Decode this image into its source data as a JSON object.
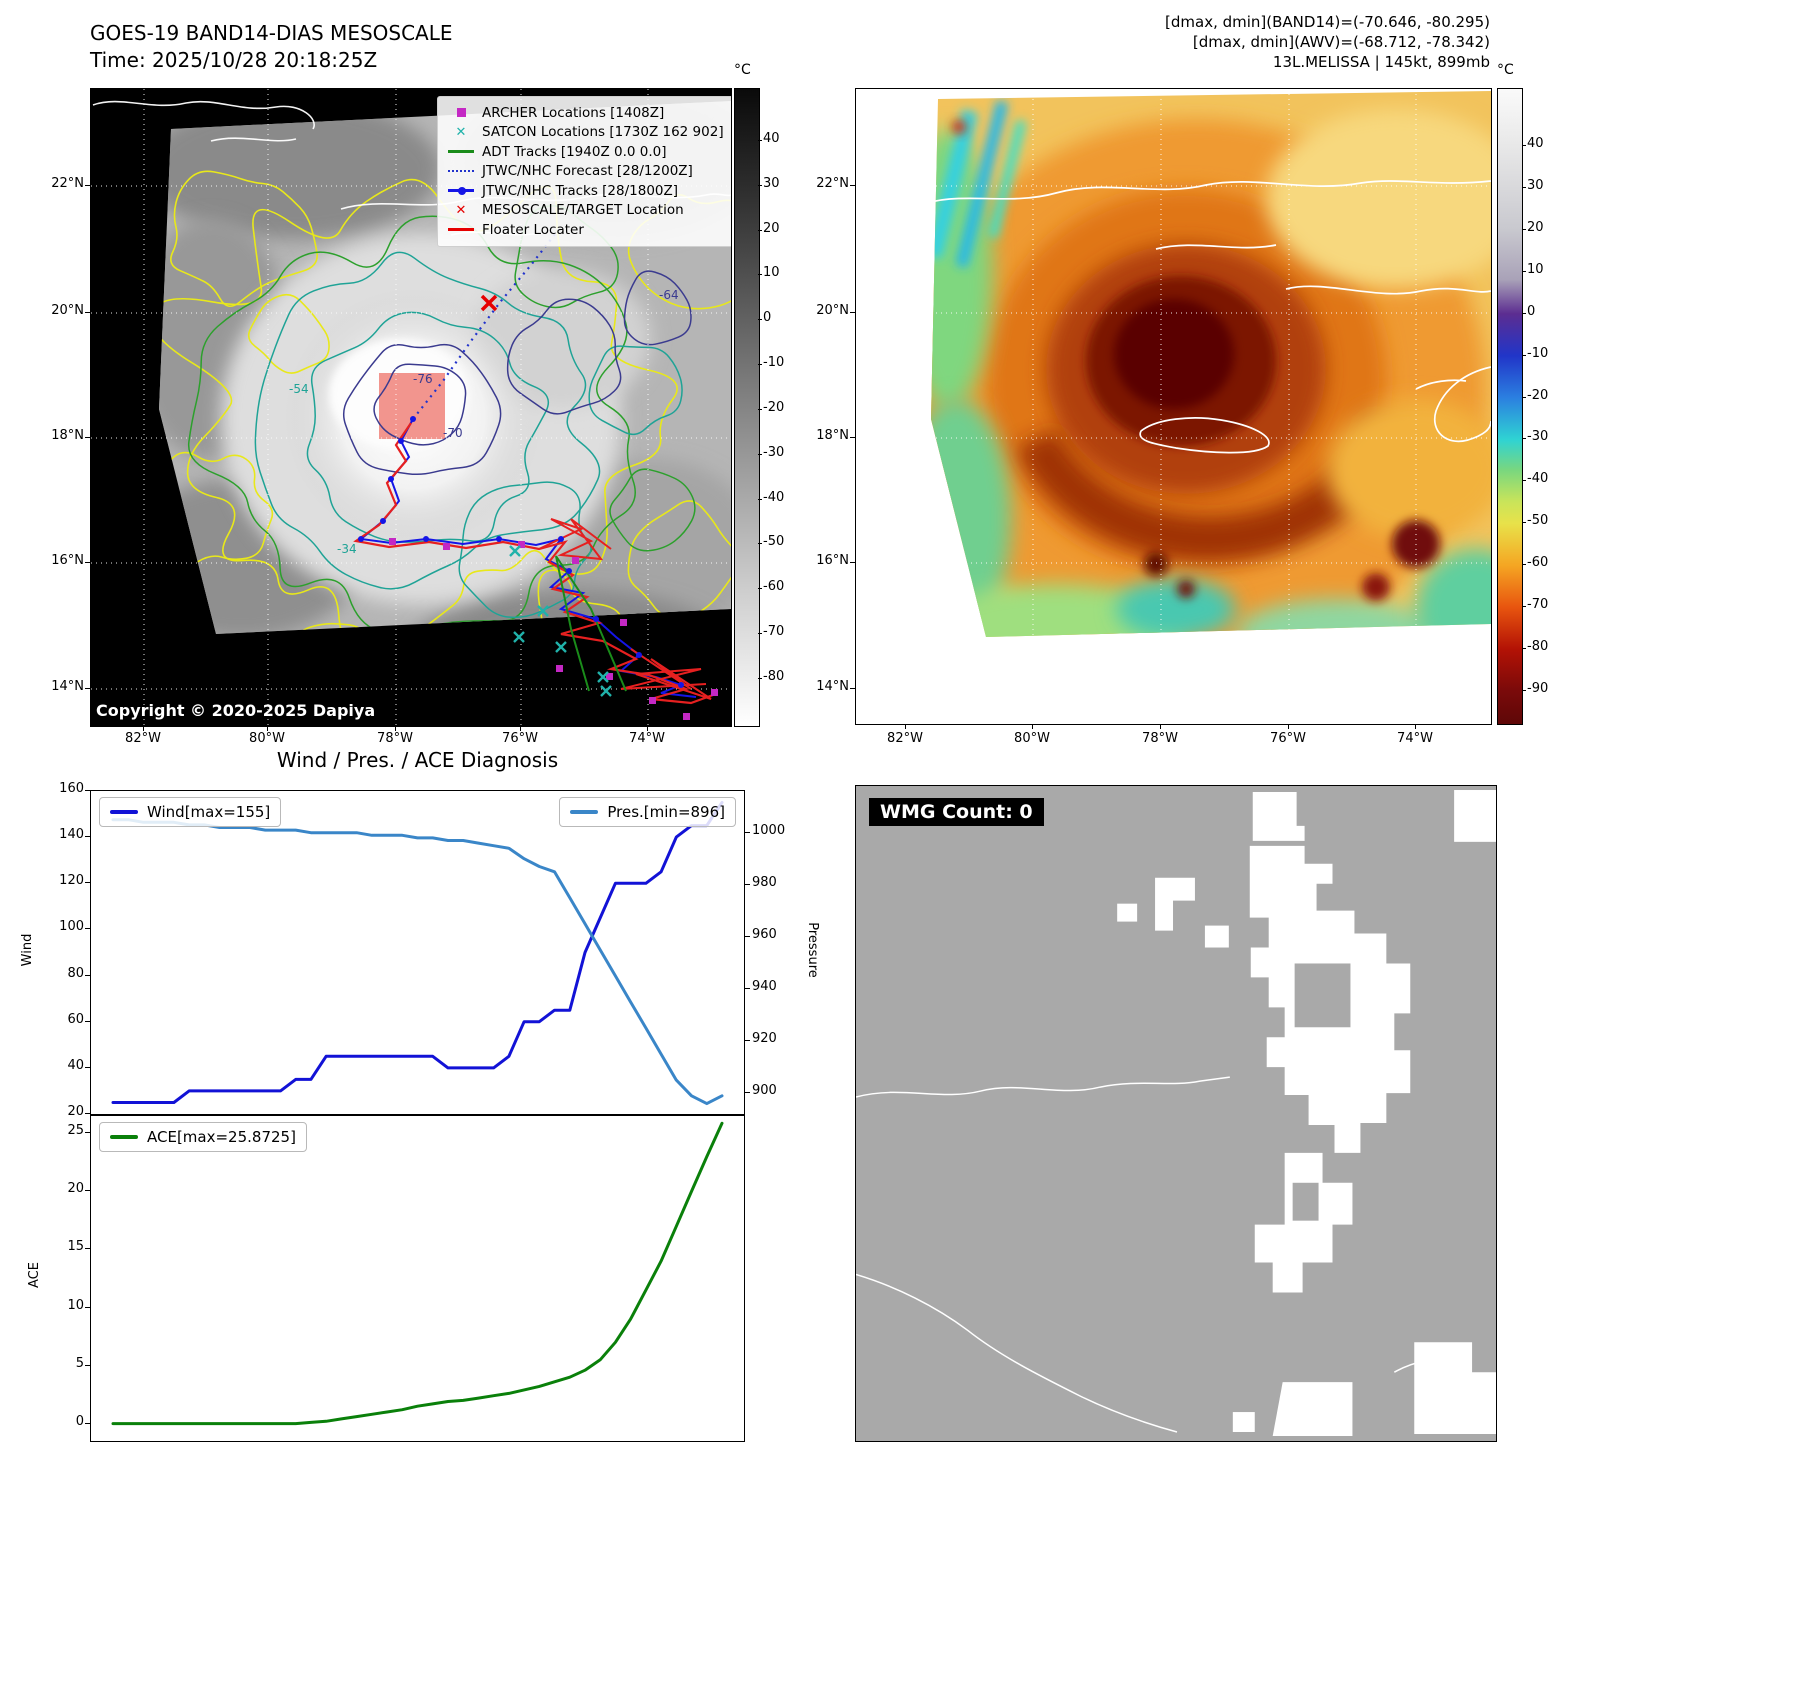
{
  "panel_band14": {
    "title": "GOES-19 BAND14-DIAS MESOSCALE",
    "time_label": "Time: 2025/10/28 20:18:25Z",
    "copyright": "Copyright © 2020-2025 Dapiya",
    "colorbar_unit": "°C",
    "colorbar_ticks": [
      "40",
      "30",
      "20",
      "10",
      "0",
      "-10",
      "-20",
      "-30",
      "-40",
      "-50",
      "-60",
      "-70",
      "-80"
    ],
    "x_ticks": [
      "82°W",
      "80°W",
      "78°W",
      "76°W",
      "74°W"
    ],
    "y_ticks": [
      "22°N",
      "20°N",
      "18°N",
      "16°N",
      "14°N"
    ],
    "contour_labels": {
      "m54": "-54",
      "m76": "-76",
      "m70": "-70",
      "m64": "-64",
      "m34": "-34"
    },
    "legend_items": [
      {
        "label": "ARCHER Locations [1408Z]",
        "marker": "square",
        "color": "#c428c4"
      },
      {
        "label": "SATCON Locations [1730Z 162 902]",
        "marker": "x",
        "color": "#20b2aa"
      },
      {
        "label": "ADT Tracks [1940Z 0.0 0.0]",
        "marker": "line",
        "color": "#1a8c1a"
      },
      {
        "label": "JTWC/NHC Forecast [28/1200Z]",
        "marker": "dotted",
        "color": "#2233cc"
      },
      {
        "label": "JTWC/NHC Tracks [28/1800Z]",
        "marker": "line-dot",
        "color": "#1515e6"
      },
      {
        "label": "MESOSCALE/TARGET Location",
        "marker": "x",
        "color": "#e60000"
      },
      {
        "label": "Floater Locater",
        "marker": "line",
        "color": "#e60000"
      }
    ]
  },
  "panel_awv": {
    "header_line1": "[dmax, dmin](BAND14)=(-70.646, -80.295)",
    "header_line2": "[dmax, dmin](AWV)=(-68.712, -78.342)",
    "header_line3": "13L.MELISSA | 145kt, 899mb",
    "colorbar_unit": "°C",
    "colorbar_ticks": [
      "40",
      "30",
      "20",
      "10",
      "0",
      "-10",
      "-20",
      "-30",
      "-40",
      "-50",
      "-60",
      "-70",
      "-80",
      "-90"
    ],
    "x_ticks": [
      "82°W",
      "80°W",
      "78°W",
      "76°W",
      "74°W"
    ],
    "y_ticks": [
      "22°N",
      "20°N",
      "18°N",
      "16°N",
      "14°N"
    ]
  },
  "wmg_panel": {
    "count_label": "WMG Count: 0"
  },
  "chart_data": [
    {
      "type": "line",
      "title": "Wind / Pres. / ACE Diagnosis",
      "xlabel": "",
      "x_count": 41,
      "ylabel_left": "Wind",
      "ylabel_right": "Pressure",
      "ylim_left": [
        20,
        160
      ],
      "ylim_right": [
        892,
        1016
      ],
      "yticks_left": [
        160,
        140,
        120,
        100,
        80,
        60,
        40,
        20
      ],
      "yticks_right": [
        1000,
        980,
        960,
        940,
        920,
        900
      ],
      "grid": false,
      "legend_position": "upper-left and upper-right",
      "series": [
        {
          "name": "Wind[max=155]",
          "axis": "left",
          "color": "#1212d6",
          "values": [
            25,
            25,
            25,
            25,
            25,
            30,
            30,
            30,
            30,
            30,
            30,
            30,
            35,
            35,
            45,
            45,
            45,
            45,
            45,
            45,
            45,
            45,
            40,
            40,
            40,
            40,
            45,
            60,
            60,
            65,
            65,
            90,
            105,
            120,
            120,
            120,
            125,
            140,
            145,
            145,
            155
          ]
        },
        {
          "name": "Pres.[min=896]",
          "axis": "right",
          "color": "#3a86c8",
          "values": [
            1005,
            1005,
            1004,
            1004,
            1004,
            1003,
            1003,
            1002,
            1002,
            1002,
            1001,
            1001,
            1001,
            1000,
            1000,
            1000,
            1000,
            999,
            999,
            999,
            998,
            998,
            997,
            997,
            996,
            995,
            994,
            990,
            987,
            985,
            975,
            965,
            955,
            945,
            935,
            925,
            915,
            905,
            899,
            896,
            899
          ]
        }
      ]
    },
    {
      "type": "line",
      "title": "",
      "xlabel": "",
      "x_count": 41,
      "ylabel": "ACE",
      "ylim": [
        -1.5,
        26.5
      ],
      "yticks": [
        25,
        20,
        15,
        10,
        5,
        0
      ],
      "grid": false,
      "legend_position": "upper-left",
      "series": [
        {
          "name": "ACE[max=25.8725]",
          "color": "#0a800a",
          "values": [
            0,
            0,
            0,
            0,
            0,
            0,
            0,
            0,
            0,
            0,
            0,
            0,
            0,
            0.1,
            0.2,
            0.4,
            0.6,
            0.8,
            1,
            1.2,
            1.5,
            1.7,
            1.9,
            2,
            2.2,
            2.4,
            2.6,
            2.9,
            3.2,
            3.6,
            4,
            4.6,
            5.5,
            7,
            9,
            11.5,
            14,
            17,
            20,
            23,
            25.8725
          ]
        }
      ]
    }
  ]
}
